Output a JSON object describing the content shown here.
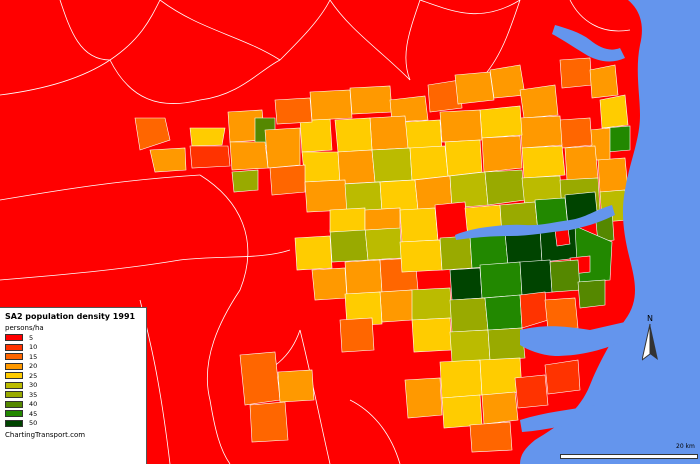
{
  "legend": {
    "title": "SA2 population density 1991",
    "unit": "persons/ha",
    "items": [
      {
        "label": "5",
        "color": "#ff0000"
      },
      {
        "label": "10",
        "color": "#ff3300"
      },
      {
        "label": "15",
        "color": "#ff6600"
      },
      {
        "label": "20",
        "color": "#ff9900"
      },
      {
        "label": "25",
        "color": "#ffcc00"
      },
      {
        "label": "30",
        "color": "#bbbb00"
      },
      {
        "label": "35",
        "color": "#99aa00"
      },
      {
        "label": "40",
        "color": "#558800"
      },
      {
        "label": "45",
        "color": "#228800"
      },
      {
        "label": "50",
        "color": "#004400"
      }
    ],
    "source": "ChartingTransport.com"
  },
  "north_arrow": {
    "letter": "N"
  },
  "scale": {
    "label": "20 km"
  },
  "colors": {
    "background_region": "#ff0000",
    "sea": "#6495ed",
    "boundary": "#ffffff"
  }
}
